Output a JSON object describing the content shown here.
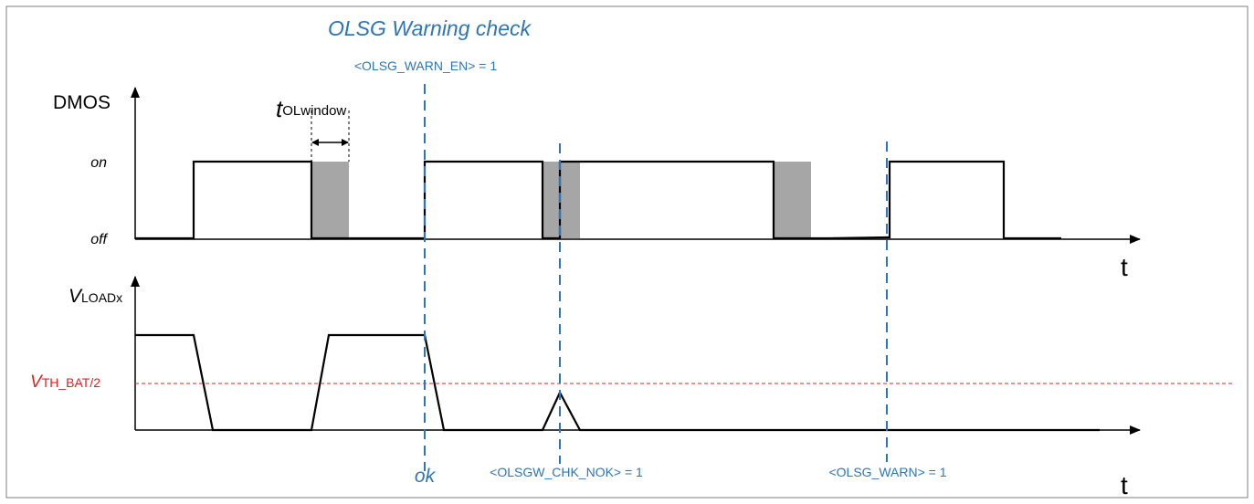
{
  "colors": {
    "frame": "#7f7f7f",
    "signal": "#000000",
    "marker": "#2e75b6",
    "threshold": "#e02020",
    "window_fill": "#a6a6a6"
  },
  "title": "OLSG Warning check",
  "markers": {
    "warn_en": "<OLSG_WARN_EN> = 1",
    "ok": "ok",
    "chk_nok": "<OLSGW_CHK_NOK> = 1",
    "warn": "<OLSG_WARN> = 1"
  },
  "dmos": {
    "label": "DMOS",
    "level_on": "on",
    "level_off": "off",
    "window_label_main": "t",
    "window_label_sub": "OLwindow",
    "time_axis": "t"
  },
  "vload": {
    "label_main": "V",
    "label_sub": "LOADx",
    "threshold_main": "V",
    "threshold_sub": "TH_BAT/2",
    "time_axis": "t"
  }
}
